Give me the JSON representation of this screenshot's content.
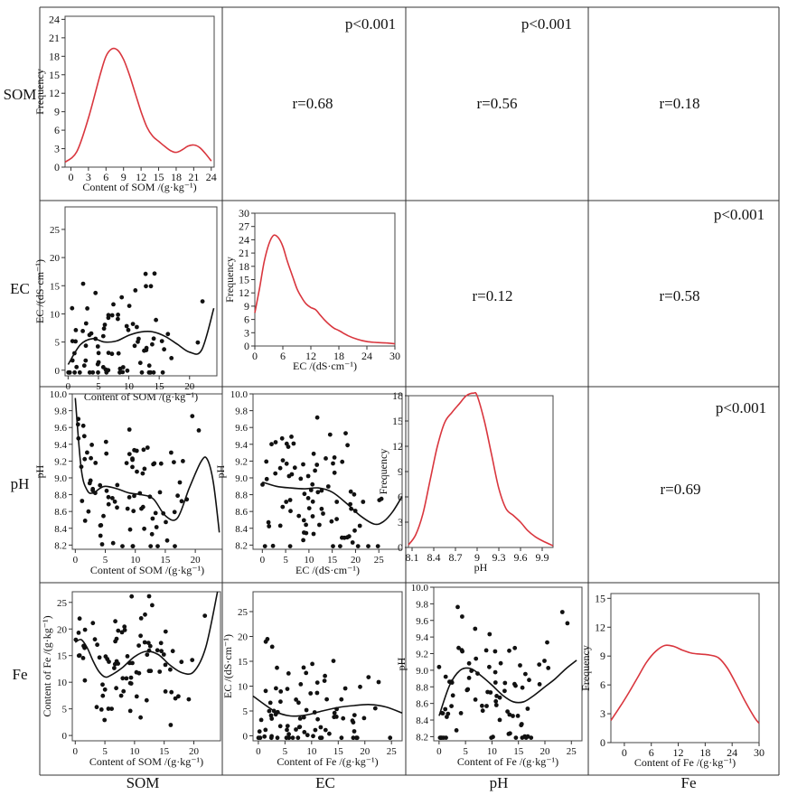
{
  "variables": [
    "SOM",
    "EC",
    "pH",
    "Fe"
  ],
  "correlations": [
    {
      "row": 0,
      "col": 1,
      "r": "r=0.68",
      "p": "p<0.001"
    },
    {
      "row": 0,
      "col": 2,
      "r": "r=0.56",
      "p": "p<0.001"
    },
    {
      "row": 0,
      "col": 3,
      "r": "r=0.18",
      "p": ""
    },
    {
      "row": 1,
      "col": 2,
      "r": "r=0.12",
      "p": ""
    },
    {
      "row": 1,
      "col": 3,
      "r": "r=0.58",
      "p": "p<0.001"
    },
    {
      "row": 2,
      "col": 3,
      "r": "r=0.69",
      "p": "p<0.001"
    }
  ],
  "colors": {
    "density": "#d9363e",
    "points": "#111111",
    "fit": "#111111",
    "border": "#333333"
  },
  "chart_data": [
    {
      "type": "line",
      "id": "d-som",
      "row": 0,
      "col": 0,
      "xlabel": "Content of SOM /(g·kg⁻¹)",
      "ylabel": "Frequency",
      "xlim": [
        -1,
        24.5
      ],
      "ylim": [
        0,
        24.5
      ],
      "xticks": [
        0,
        3,
        6,
        9,
        12,
        15,
        18,
        21,
        24
      ],
      "yticks": [
        0,
        3,
        6,
        9,
        12,
        15,
        18,
        21,
        24
      ],
      "x": [
        -1,
        1,
        3,
        5,
        6,
        7,
        8,
        9,
        10,
        11,
        12,
        13,
        14,
        15,
        16,
        17,
        18,
        19,
        20,
        21,
        22,
        23,
        24
      ],
      "y": [
        0.8,
        2.5,
        8,
        15,
        18,
        19.2,
        19,
        17.5,
        15,
        12,
        9,
        6.5,
        5,
        4.2,
        3.4,
        2.7,
        2.4,
        2.8,
        3.4,
        3.6,
        3.2,
        2.2,
        1
      ]
    },
    {
      "type": "line",
      "id": "d-ec",
      "row": 1,
      "col": 1,
      "xlabel": "EC /(dS·cm⁻¹)",
      "ylabel": "Frequency",
      "xlim": [
        0,
        30
      ],
      "ylim": [
        0,
        30
      ],
      "xticks": [
        0,
        6,
        12,
        18,
        24,
        30
      ],
      "yticks": [
        0,
        3,
        6,
        9,
        12,
        15,
        18,
        21,
        24,
        27,
        30
      ],
      "x": [
        0,
        1,
        2,
        3,
        4,
        5,
        6,
        7,
        8,
        9,
        10,
        11,
        12,
        13,
        14,
        15,
        16,
        17,
        18,
        20,
        22,
        24,
        26,
        28,
        30
      ],
      "y": [
        7.5,
        13,
        19,
        23,
        25,
        24.5,
        22.5,
        19,
        16,
        13,
        11,
        9.5,
        8.7,
        8.2,
        7,
        5.8,
        4.8,
        4,
        3.5,
        2.3,
        1.5,
        1,
        0.8,
        0.7,
        0.5
      ]
    },
    {
      "type": "line",
      "id": "d-ph",
      "row": 2,
      "col": 2,
      "xlabel": "pH",
      "ylabel": "Frequency",
      "xlim": [
        8.05,
        10.05
      ],
      "ylim": [
        0,
        18
      ],
      "xticks": [
        8.1,
        8.4,
        8.7,
        9.0,
        9.3,
        9.6,
        9.9
      ],
      "yticks": [
        0,
        3,
        6,
        9,
        12,
        15,
        18
      ],
      "x": [
        8.05,
        8.15,
        8.25,
        8.35,
        8.45,
        8.55,
        8.65,
        8.75,
        8.85,
        8.95,
        9.0,
        9.1,
        9.2,
        9.3,
        9.4,
        9.5,
        9.6,
        9.7,
        9.8,
        9.9,
        10.05
      ],
      "y": [
        0.3,
        1.5,
        4,
        8,
        12,
        14.8,
        16,
        17,
        18,
        18.3,
        18,
        15,
        11,
        7,
        4.6,
        3.8,
        3,
        2,
        1.3,
        0.8,
        0.2
      ]
    },
    {
      "type": "line",
      "id": "d-fe",
      "row": 3,
      "col": 3,
      "xlabel": "Content of Fe /(g·kg⁻¹)",
      "ylabel": "Frequency",
      "xlim": [
        -3,
        30
      ],
      "ylim": [
        0,
        15.5
      ],
      "xticks": [
        0,
        6,
        12,
        18,
        24,
        30
      ],
      "yticks": [
        0,
        3,
        6,
        9,
        12,
        15
      ],
      "x": [
        -3,
        -1,
        1,
        3,
        5,
        7,
        9,
        11,
        13,
        15,
        17,
        19,
        21,
        23,
        25,
        27,
        29,
        30
      ],
      "y": [
        2.3,
        3.7,
        5.2,
        6.8,
        8.4,
        9.5,
        10.1,
        10,
        9.6,
        9.3,
        9.2,
        9.1,
        8.8,
        7.7,
        6,
        4.2,
        2.6,
        2
      ]
    },
    {
      "type": "scatter",
      "id": "s-ec-som",
      "row": 1,
      "col": 0,
      "xlabel": "Content of SOM /(g·kg⁻¹)",
      "ylabel": "EC /(dS·cm⁻¹)",
      "xlim": [
        -0.5,
        24.5
      ],
      "ylim": [
        -1,
        29
      ],
      "xticks": [
        0,
        5,
        10,
        15,
        20
      ],
      "yticks": [
        0,
        5,
        10,
        15,
        20,
        25
      ],
      "fit_x": [
        0,
        2,
        4,
        6,
        8,
        10,
        12,
        14,
        16,
        18,
        20,
        22,
        24
      ],
      "fit_y": [
        1,
        4.5,
        5.6,
        5,
        5.2,
        6.2,
        6.8,
        6.8,
        6,
        4.6,
        3.2,
        3.6,
        11
      ]
    },
    {
      "type": "scatter",
      "id": "s-ph-som",
      "row": 2,
      "col": 0,
      "xlabel": "Content of SOM /(g·kg⁻¹)",
      "ylabel": "pH",
      "xlim": [
        -0.5,
        24.5
      ],
      "ylim": [
        8.15,
        10.0
      ],
      "xticks": [
        0,
        5,
        10,
        15,
        20
      ],
      "yticks": [
        8.2,
        8.4,
        8.6,
        8.8,
        9.0,
        9.2,
        9.4,
        9.6,
        9.8,
        10.0
      ],
      "fit_x": [
        0,
        1,
        2,
        3,
        4,
        5,
        7,
        9,
        11,
        13,
        15,
        17,
        19,
        21,
        22,
        23,
        24
      ],
      "fit_y": [
        9.95,
        9.1,
        8.85,
        8.82,
        8.87,
        8.9,
        8.87,
        8.82,
        8.8,
        8.75,
        8.55,
        8.52,
        8.88,
        9.2,
        9.22,
        8.95,
        8.35
      ]
    },
    {
      "type": "scatter",
      "id": "s-ph-ec",
      "row": 2,
      "col": 1,
      "xlabel": "EC /(dS·cm⁻¹)",
      "ylabel": "pH",
      "xlim": [
        -2,
        30
      ],
      "ylim": [
        8.15,
        10.0
      ],
      "xticks": [
        0,
        5,
        10,
        15,
        20,
        25
      ],
      "yticks": [
        8.2,
        8.4,
        8.6,
        8.8,
        9.0,
        9.2,
        9.4,
        9.6,
        9.8,
        10.0
      ],
      "fit_x": [
        0,
        3,
        6,
        9,
        12,
        15,
        18,
        21,
        24,
        26,
        28,
        30
      ],
      "fit_y": [
        8.95,
        8.9,
        8.88,
        8.87,
        8.88,
        8.83,
        8.7,
        8.55,
        8.45,
        8.48,
        8.6,
        8.78
      ]
    },
    {
      "type": "scatter",
      "id": "s-fe-som",
      "row": 3,
      "col": 0,
      "xlabel": "Content of SOM /(g·kg⁻¹)",
      "ylabel": "Content of Fe /(g·kg⁻¹)",
      "xlim": [
        -0.5,
        24.5
      ],
      "ylim": [
        -1,
        27
      ],
      "xticks": [
        0,
        5,
        10,
        15,
        20
      ],
      "yticks": [
        0,
        5,
        10,
        15,
        20,
        25
      ],
      "fit_x": [
        0,
        1,
        2,
        3,
        4,
        5,
        6,
        8,
        10,
        12,
        14,
        16,
        18,
        20,
        22,
        24
      ],
      "fit_y": [
        17.5,
        18,
        16.5,
        14,
        12,
        11,
        11.3,
        12.8,
        14.8,
        15.8,
        15.2,
        13.2,
        11.8,
        12,
        16.5,
        27
      ]
    },
    {
      "type": "scatter",
      "id": "s-ec-fe",
      "row": 3,
      "col": 1,
      "xlabel": "Content of Fe /(g·kg⁻¹)",
      "ylabel": "EC /(dS·cm⁻¹)",
      "xlim": [
        -1,
        27
      ],
      "ylim": [
        -1,
        29
      ],
      "xticks": [
        0,
        5,
        10,
        15,
        20,
        25
      ],
      "yticks": [
        0,
        5,
        10,
        15,
        20,
        25
      ],
      "fit_x": [
        -1,
        3,
        6,
        9,
        12,
        15,
        18,
        21,
        24,
        27
      ],
      "fit_y": [
        8,
        5,
        4,
        4.2,
        5,
        5.7,
        6.1,
        6.3,
        5.8,
        4.6
      ]
    },
    {
      "type": "scatter",
      "id": "s-ph-fe",
      "row": 3,
      "col": 2,
      "xlabel": "Content of Fe /(g·kg⁻¹)",
      "ylabel": "pH",
      "xlim": [
        -1,
        27
      ],
      "ylim": [
        8.15,
        10.0
      ],
      "xticks": [
        0,
        5,
        10,
        15,
        20,
        25
      ],
      "yticks": [
        8.2,
        8.4,
        8.6,
        8.8,
        9.0,
        9.2,
        9.4,
        9.6,
        9.8,
        10.0
      ],
      "fit_x": [
        0,
        2,
        4,
        6,
        8,
        10,
        12,
        14,
        16,
        18,
        20,
        22,
        24,
        26
      ],
      "fit_y": [
        8.45,
        8.82,
        9.0,
        9.02,
        8.93,
        8.82,
        8.7,
        8.62,
        8.62,
        8.7,
        8.8,
        8.9,
        9.02,
        9.12
      ]
    }
  ]
}
